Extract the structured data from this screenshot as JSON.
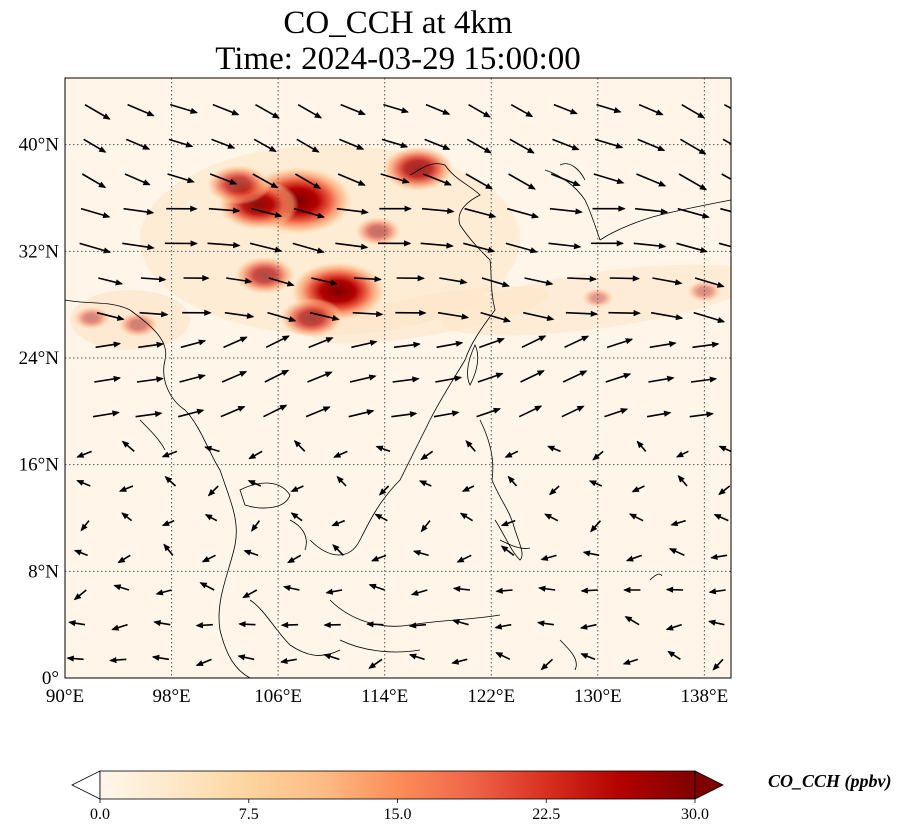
{
  "title": {
    "line1": "CO_CCH at 4km",
    "line2": "Time: 2024-03-29 15:00:00"
  },
  "map": {
    "type": "contour-map-with-wind-vectors",
    "lon_range": [
      90,
      140
    ],
    "lat_range": [
      0,
      45
    ],
    "lon_ticks": [
      90,
      98,
      106,
      114,
      122,
      130,
      138
    ],
    "lat_ticks": [
      0,
      8,
      16,
      24,
      32,
      40
    ],
    "lon_tick_labels": [
      "90°E",
      "98°E",
      "106°E",
      "114°E",
      "122°E",
      "130°E",
      "138°E"
    ],
    "lat_tick_labels": [
      "0°",
      "8°N",
      "16°N",
      "24°N",
      "32°N",
      "40°N"
    ],
    "gridlines": "dotted",
    "coastlines": true,
    "wind_vectors": true
  },
  "colorbar": {
    "label": "CO_CCH (ppbv)",
    "min": 0.0,
    "max": 30.0,
    "tick_values": [
      0.0,
      7.5,
      15.0,
      22.5,
      30.0
    ],
    "tick_labels": [
      "0.0",
      "7.5",
      "15.0",
      "22.5",
      "30.0"
    ],
    "colormap": "OrRd",
    "extend": "both",
    "colors": [
      "#fff7ec",
      "#fee8c8",
      "#fdd49e",
      "#fdbb84",
      "#fc8d59",
      "#ef6548",
      "#d7301f",
      "#b30000",
      "#7f0000"
    ]
  },
  "chart_data": {
    "type": "heatmap",
    "variable": "CO_CCH",
    "units": "ppbv",
    "height": "4km",
    "time": "2024-03-29 15:00:00",
    "xlim": [
      90,
      140
    ],
    "ylim": [
      0,
      45
    ],
    "hotspots": [
      {
        "lon": 107.5,
        "lat": 35.8,
        "value": 30
      },
      {
        "lon": 110.5,
        "lat": 29.0,
        "value": 25
      },
      {
        "lon": 104.5,
        "lat": 35.5,
        "value": 20
      },
      {
        "lon": 116.5,
        "lat": 38.2,
        "value": 17
      },
      {
        "lon": 103.0,
        "lat": 37.0,
        "value": 14
      },
      {
        "lon": 108.5,
        "lat": 27.0,
        "value": 14
      },
      {
        "lon": 105.0,
        "lat": 30.2,
        "value": 13
      },
      {
        "lon": 113.5,
        "lat": 33.5,
        "value": 8
      },
      {
        "lon": 95.5,
        "lat": 26.5,
        "value": 6
      },
      {
        "lon": 92.0,
        "lat": 27.0,
        "value": 5
      },
      {
        "lon": 130.0,
        "lat": 28.5,
        "value": 3
      },
      {
        "lon": 138.0,
        "lat": 29.0,
        "value": 4
      }
    ]
  }
}
